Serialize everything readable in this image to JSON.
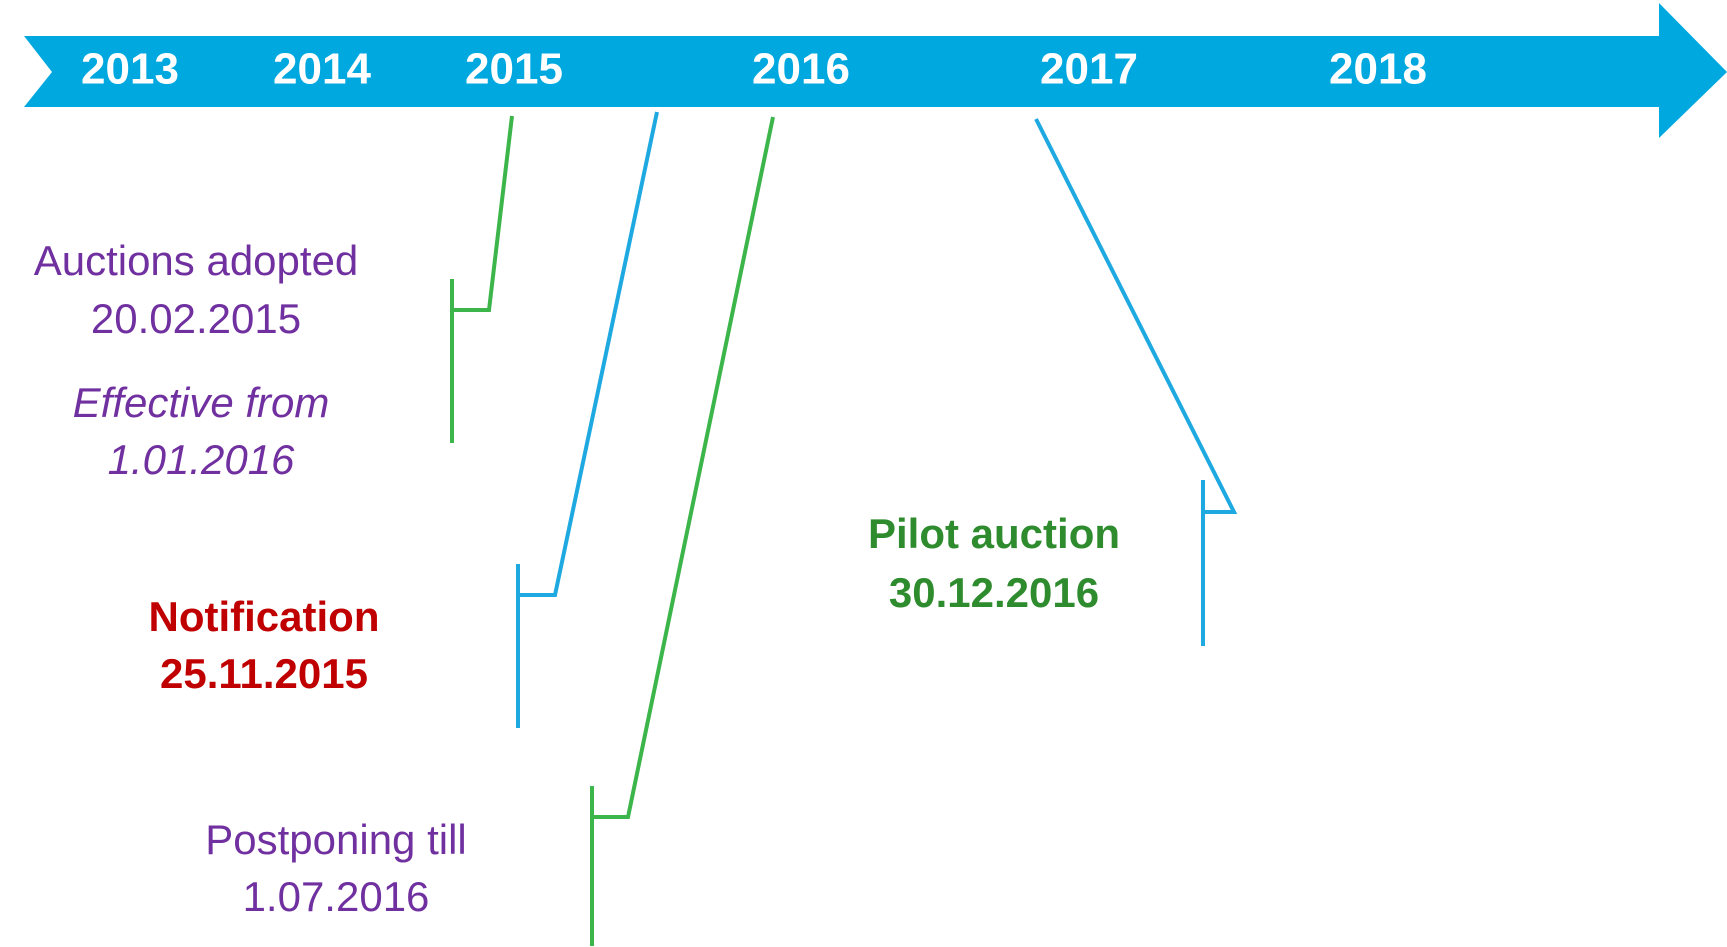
{
  "timeline": {
    "years": [
      "2013",
      "2014",
      "2015",
      "2016",
      "2017",
      "2018"
    ],
    "events": [
      {
        "title": "Auctions adopted",
        "date": "20.02.2015",
        "note": "Effective from",
        "note_date": "1.01.2016"
      },
      {
        "title": "Notification",
        "date": "25.11.2015"
      },
      {
        "title": "Postponing till",
        "date": "1.07.2016"
      },
      {
        "title": "Pilot auction",
        "date": "30.12.2016"
      }
    ]
  }
}
